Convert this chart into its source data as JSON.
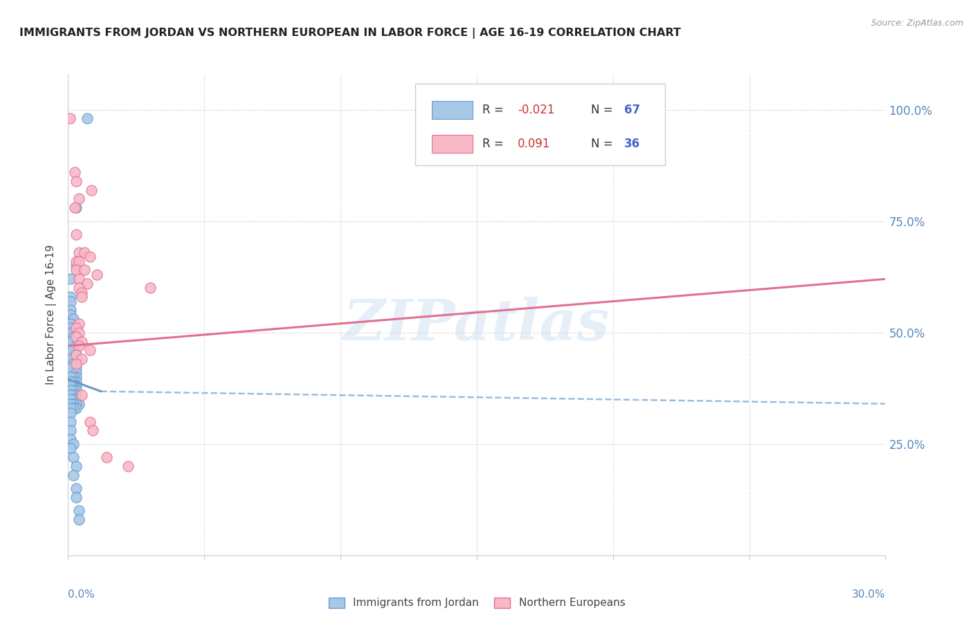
{
  "title": "IMMIGRANTS FROM JORDAN VS NORTHERN EUROPEAN IN LABOR FORCE | AGE 16-19 CORRELATION CHART",
  "source": "Source: ZipAtlas.com",
  "ylabel": "In Labor Force | Age 16-19",
  "jordan_color": "#a8c8e8",
  "jordan_edge": "#6699cc",
  "northern_color": "#f8b8c8",
  "northern_edge": "#e07090",
  "jordan_scatter": [
    [
      0.007,
      0.98
    ],
    [
      0.003,
      0.78
    ],
    [
      0.003,
      0.65
    ],
    [
      0.001,
      0.62
    ],
    [
      0.001,
      0.58
    ],
    [
      0.001,
      0.57
    ],
    [
      0.001,
      0.55
    ],
    [
      0.001,
      0.54
    ],
    [
      0.002,
      0.53
    ],
    [
      0.001,
      0.52
    ],
    [
      0.001,
      0.51
    ],
    [
      0.002,
      0.5
    ],
    [
      0.001,
      0.5
    ],
    [
      0.002,
      0.49
    ],
    [
      0.002,
      0.48
    ],
    [
      0.001,
      0.48
    ],
    [
      0.003,
      0.47
    ],
    [
      0.002,
      0.46
    ],
    [
      0.001,
      0.46
    ],
    [
      0.003,
      0.45
    ],
    [
      0.002,
      0.44
    ],
    [
      0.003,
      0.44
    ],
    [
      0.001,
      0.44
    ],
    [
      0.003,
      0.43
    ],
    [
      0.002,
      0.43
    ],
    [
      0.003,
      0.42
    ],
    [
      0.002,
      0.42
    ],
    [
      0.001,
      0.42
    ],
    [
      0.003,
      0.41
    ],
    [
      0.003,
      0.4
    ],
    [
      0.002,
      0.4
    ],
    [
      0.001,
      0.4
    ],
    [
      0.003,
      0.39
    ],
    [
      0.002,
      0.39
    ],
    [
      0.001,
      0.39
    ],
    [
      0.003,
      0.38
    ],
    [
      0.002,
      0.38
    ],
    [
      0.001,
      0.38
    ],
    [
      0.003,
      0.37
    ],
    [
      0.002,
      0.37
    ],
    [
      0.001,
      0.37
    ],
    [
      0.003,
      0.36
    ],
    [
      0.002,
      0.36
    ],
    [
      0.001,
      0.36
    ],
    [
      0.003,
      0.35
    ],
    [
      0.002,
      0.35
    ],
    [
      0.001,
      0.35
    ],
    [
      0.004,
      0.34
    ],
    [
      0.003,
      0.34
    ],
    [
      0.002,
      0.34
    ],
    [
      0.001,
      0.34
    ],
    [
      0.003,
      0.33
    ],
    [
      0.002,
      0.33
    ],
    [
      0.001,
      0.33
    ],
    [
      0.001,
      0.32
    ],
    [
      0.001,
      0.3
    ],
    [
      0.001,
      0.28
    ],
    [
      0.001,
      0.26
    ],
    [
      0.002,
      0.25
    ],
    [
      0.001,
      0.24
    ],
    [
      0.002,
      0.22
    ],
    [
      0.003,
      0.2
    ],
    [
      0.002,
      0.18
    ],
    [
      0.003,
      0.15
    ],
    [
      0.003,
      0.13
    ],
    [
      0.004,
      0.1
    ],
    [
      0.004,
      0.08
    ]
  ],
  "northern_scatter": [
    [
      0.0007,
      0.98
    ],
    [
      0.0025,
      0.86
    ],
    [
      0.003,
      0.84
    ],
    [
      0.0085,
      0.82
    ],
    [
      0.004,
      0.8
    ],
    [
      0.0025,
      0.78
    ],
    [
      0.003,
      0.72
    ],
    [
      0.004,
      0.68
    ],
    [
      0.006,
      0.68
    ],
    [
      0.008,
      0.67
    ],
    [
      0.003,
      0.66
    ],
    [
      0.004,
      0.66
    ],
    [
      0.003,
      0.64
    ],
    [
      0.006,
      0.64
    ],
    [
      0.0105,
      0.63
    ],
    [
      0.004,
      0.62
    ],
    [
      0.007,
      0.61
    ],
    [
      0.004,
      0.6
    ],
    [
      0.005,
      0.59
    ],
    [
      0.005,
      0.58
    ],
    [
      0.004,
      0.52
    ],
    [
      0.003,
      0.51
    ],
    [
      0.004,
      0.5
    ],
    [
      0.003,
      0.49
    ],
    [
      0.005,
      0.48
    ],
    [
      0.004,
      0.47
    ],
    [
      0.003,
      0.45
    ],
    [
      0.005,
      0.44
    ],
    [
      0.003,
      0.43
    ],
    [
      0.008,
      0.46
    ],
    [
      0.005,
      0.36
    ],
    [
      0.008,
      0.3
    ],
    [
      0.009,
      0.28
    ],
    [
      0.014,
      0.22
    ],
    [
      0.022,
      0.2
    ],
    [
      0.03,
      0.6
    ]
  ],
  "jordan_line_solid": {
    "x": [
      0.0,
      0.012
    ],
    "y": [
      0.395,
      0.368
    ]
  },
  "jordan_line_dash": {
    "x": [
      0.012,
      0.3
    ],
    "y": [
      0.368,
      0.34
    ]
  },
  "northern_line": {
    "x": [
      0.0,
      0.3
    ],
    "y": [
      0.47,
      0.62
    ]
  },
  "xlim": [
    0.0,
    0.3
  ],
  "ylim": [
    0.0,
    1.08
  ],
  "watermark": "ZIPatlas",
  "background_color": "#ffffff",
  "grid_color": "#dddddd",
  "legend_r1": "R = -0.021",
  "legend_n1": "N = 67",
  "legend_r2": "R =  0.091",
  "legend_n2": "N = 36"
}
